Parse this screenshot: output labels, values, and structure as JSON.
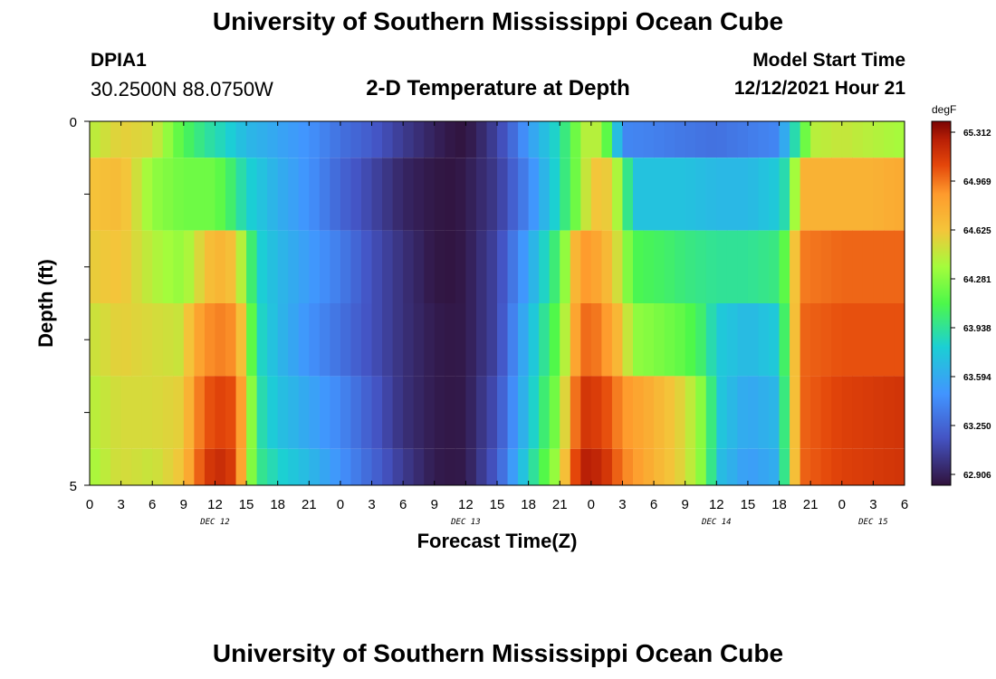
{
  "header": {
    "title": "University of Southern Mississippi Ocean Cube",
    "station_id": "DPIA1",
    "coordinates": "30.2500N  88.0750W",
    "subtitle": "2-D Temperature at Depth",
    "start_label": "Model Start Time",
    "start_value": "12/12/2021 Hour 21"
  },
  "footer": {
    "title": "University of Southern Mississippi Ocean Cube"
  },
  "chart_data": {
    "type": "heatmap",
    "title": "2-D Temperature at Depth",
    "xlabel": "Forecast Time(Z)",
    "ylabel": "Depth (ft)",
    "unit": "degF",
    "x_tick_labels": [
      "0",
      "3",
      "6",
      "9",
      "12",
      "15",
      "18",
      "21",
      "0",
      "3",
      "6",
      "9",
      "12",
      "15",
      "18",
      "21",
      "0",
      "3",
      "6",
      "9",
      "12",
      "15",
      "18",
      "21",
      "0",
      "3",
      "6"
    ],
    "day_labels": [
      {
        "label": "DEC 12",
        "hour": 12
      },
      {
        "label": "DEC 13",
        "hour": 36
      },
      {
        "label": "DEC 14",
        "hour": 60
      },
      {
        "label": "DEC 15",
        "hour": 75
      }
    ],
    "x_range_hours": [
      0,
      78
    ],
    "y_tick_labels": [
      "0",
      "5"
    ],
    "y_range": [
      0,
      5
    ],
    "colorbar": {
      "min": 62.906,
      "max": 65.312,
      "labels": [
        "65.312",
        "64.969",
        "64.625",
        "64.281",
        "63.938",
        "63.594",
        "63.250",
        "62.906"
      ]
    },
    "depth_layers": [
      {
        "top": 0,
        "bottom": 0.5,
        "profile": [
          [
            0,
            64.4
          ],
          [
            3,
            64.55
          ],
          [
            6,
            64.5
          ],
          [
            9,
            64.1
          ],
          [
            11,
            63.95
          ],
          [
            13,
            63.85
          ],
          [
            15,
            63.7
          ],
          [
            18,
            63.6
          ],
          [
            21,
            63.5
          ],
          [
            24,
            63.35
          ],
          [
            27,
            63.25
          ],
          [
            30,
            63.1
          ],
          [
            33,
            62.98
          ],
          [
            35,
            62.92
          ],
          [
            36,
            62.92
          ],
          [
            38,
            63.05
          ],
          [
            40,
            63.25
          ],
          [
            42,
            63.55
          ],
          [
            45,
            63.9
          ],
          [
            47,
            64.3
          ],
          [
            48,
            64.5
          ],
          [
            49,
            64.3
          ],
          [
            50,
            64.0
          ],
          [
            51,
            63.45
          ],
          [
            54,
            63.42
          ],
          [
            57,
            63.38
          ],
          [
            60,
            63.35
          ],
          [
            63,
            63.4
          ],
          [
            66,
            63.45
          ],
          [
            67,
            63.8
          ],
          [
            68,
            64.0
          ],
          [
            69,
            64.4
          ],
          [
            72,
            64.45
          ],
          [
            75,
            64.4
          ],
          [
            78,
            64.35
          ]
        ]
      },
      {
        "top": 0.5,
        "bottom": 1.5,
        "profile": [
          [
            0,
            64.6
          ],
          [
            3,
            64.65
          ],
          [
            6,
            64.3
          ],
          [
            9,
            64.2
          ],
          [
            12,
            64.2
          ],
          [
            13,
            64.1
          ],
          [
            15,
            63.85
          ],
          [
            18,
            63.65
          ],
          [
            21,
            63.5
          ],
          [
            24,
            63.3
          ],
          [
            27,
            63.15
          ],
          [
            30,
            63.0
          ],
          [
            33,
            62.93
          ],
          [
            35,
            62.92
          ],
          [
            36,
            62.95
          ],
          [
            39,
            63.1
          ],
          [
            42,
            63.45
          ],
          [
            45,
            63.9
          ],
          [
            47,
            64.3
          ],
          [
            48,
            64.6
          ],
          [
            50,
            64.55
          ],
          [
            51,
            64.2
          ],
          [
            52,
            63.75
          ],
          [
            54,
            63.75
          ],
          [
            57,
            63.75
          ],
          [
            60,
            63.7
          ],
          [
            63,
            63.7
          ],
          [
            66,
            63.8
          ],
          [
            67,
            64.0
          ],
          [
            68,
            64.7
          ],
          [
            71,
            64.7
          ],
          [
            75,
            64.7
          ],
          [
            78,
            64.75
          ]
        ]
      },
      {
        "top": 1.5,
        "bottom": 2.5,
        "profile": [
          [
            0,
            64.55
          ],
          [
            3,
            64.6
          ],
          [
            6,
            64.4
          ],
          [
            9,
            64.3
          ],
          [
            10,
            64.45
          ],
          [
            12,
            64.7
          ],
          [
            14,
            64.6
          ],
          [
            15,
            64.2
          ],
          [
            16,
            63.85
          ],
          [
            18,
            63.7
          ],
          [
            21,
            63.55
          ],
          [
            24,
            63.4
          ],
          [
            27,
            63.2
          ],
          [
            30,
            63.05
          ],
          [
            33,
            62.93
          ],
          [
            35,
            62.92
          ],
          [
            36,
            62.95
          ],
          [
            39,
            63.15
          ],
          [
            42,
            63.6
          ],
          [
            45,
            64.1
          ],
          [
            46,
            64.5
          ],
          [
            47,
            64.85
          ],
          [
            49,
            64.75
          ],
          [
            51,
            64.4
          ],
          [
            52,
            64.1
          ],
          [
            55,
            64.05
          ],
          [
            57,
            64.0
          ],
          [
            60,
            63.95
          ],
          [
            63,
            63.95
          ],
          [
            66,
            64.0
          ],
          [
            67,
            64.3
          ],
          [
            68,
            64.9
          ],
          [
            72,
            64.95
          ],
          [
            78,
            64.95
          ]
        ]
      },
      {
        "top": 2.5,
        "bottom": 3.5,
        "profile": [
          [
            0,
            64.45
          ],
          [
            3,
            64.55
          ],
          [
            6,
            64.5
          ],
          [
            9,
            64.45
          ],
          [
            10,
            64.75
          ],
          [
            12,
            64.9
          ],
          [
            14,
            64.85
          ],
          [
            15,
            64.4
          ],
          [
            16,
            63.9
          ],
          [
            18,
            63.7
          ],
          [
            21,
            63.5
          ],
          [
            24,
            63.35
          ],
          [
            27,
            63.2
          ],
          [
            30,
            63.05
          ],
          [
            33,
            62.95
          ],
          [
            35,
            62.93
          ],
          [
            36,
            62.95
          ],
          [
            39,
            63.15
          ],
          [
            42,
            63.7
          ],
          [
            45,
            64.2
          ],
          [
            46,
            64.6
          ],
          [
            47,
            64.95
          ],
          [
            49,
            64.9
          ],
          [
            51,
            64.6
          ],
          [
            52,
            64.3
          ],
          [
            54,
            64.25
          ],
          [
            57,
            64.15
          ],
          [
            59,
            64.0
          ],
          [
            60,
            63.8
          ],
          [
            63,
            63.7
          ],
          [
            66,
            63.8
          ],
          [
            67,
            64.3
          ],
          [
            68,
            64.95
          ],
          [
            72,
            65.0
          ],
          [
            78,
            65.0
          ]
        ]
      },
      {
        "top": 3.5,
        "bottom": 4.5,
        "profile": [
          [
            0,
            64.4
          ],
          [
            3,
            64.5
          ],
          [
            6,
            64.5
          ],
          [
            9,
            64.55
          ],
          [
            10,
            64.85
          ],
          [
            12,
            65.05
          ],
          [
            14,
            65.0
          ],
          [
            15,
            64.6
          ],
          [
            16,
            63.95
          ],
          [
            18,
            63.75
          ],
          [
            21,
            63.6
          ],
          [
            24,
            63.45
          ],
          [
            27,
            63.25
          ],
          [
            30,
            63.05
          ],
          [
            33,
            62.95
          ],
          [
            35,
            62.93
          ],
          [
            36,
            62.95
          ],
          [
            39,
            63.2
          ],
          [
            42,
            63.75
          ],
          [
            45,
            64.3
          ],
          [
            46,
            64.75
          ],
          [
            47,
            65.1
          ],
          [
            49,
            65.05
          ],
          [
            51,
            64.85
          ],
          [
            54,
            64.7
          ],
          [
            57,
            64.5
          ],
          [
            59,
            64.2
          ],
          [
            60,
            63.8
          ],
          [
            63,
            63.6
          ],
          [
            66,
            63.7
          ],
          [
            67,
            64.3
          ],
          [
            68,
            64.95
          ],
          [
            72,
            65.05
          ],
          [
            78,
            65.1
          ]
        ]
      },
      {
        "top": 4.5,
        "bottom": 5,
        "profile": [
          [
            0,
            64.35
          ],
          [
            3,
            64.5
          ],
          [
            6,
            64.45
          ],
          [
            9,
            64.6
          ],
          [
            10,
            64.9
          ],
          [
            12,
            65.15
          ],
          [
            14,
            65.05
          ],
          [
            15,
            64.5
          ],
          [
            16,
            64.0
          ],
          [
            18,
            63.85
          ],
          [
            21,
            63.7
          ],
          [
            24,
            63.5
          ],
          [
            27,
            63.3
          ],
          [
            30,
            63.1
          ],
          [
            33,
            62.95
          ],
          [
            35,
            62.93
          ],
          [
            36,
            62.95
          ],
          [
            39,
            63.25
          ],
          [
            42,
            63.85
          ],
          [
            45,
            64.4
          ],
          [
            46,
            64.85
          ],
          [
            47,
            65.2
          ],
          [
            49,
            65.15
          ],
          [
            51,
            64.9
          ],
          [
            54,
            64.7
          ],
          [
            57,
            64.5
          ],
          [
            59,
            64.2
          ],
          [
            60,
            63.75
          ],
          [
            63,
            63.55
          ],
          [
            66,
            63.65
          ],
          [
            67,
            64.3
          ],
          [
            68,
            64.95
          ],
          [
            72,
            65.05
          ],
          [
            78,
            65.1
          ]
        ]
      }
    ]
  }
}
